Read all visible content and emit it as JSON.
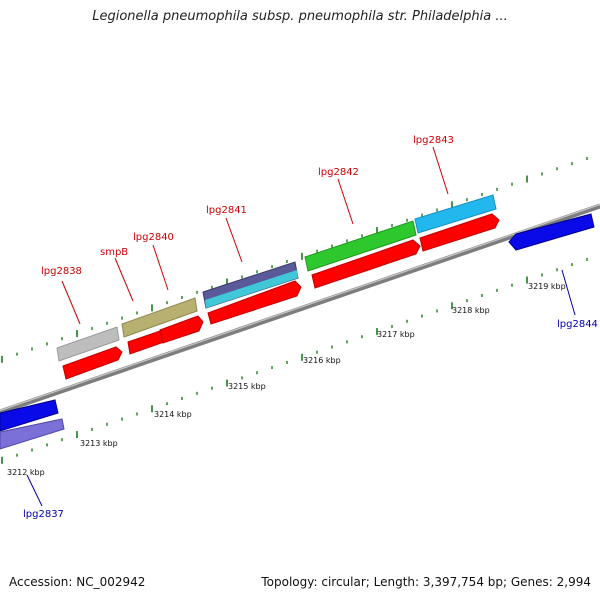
{
  "title": "Legionella pneumophila subsp. pneumophila str. Philadelphia ...",
  "footer": {
    "accession": "Accession: NC_002942",
    "summary": "Topology: circular; Length: 3,397,754 bp; Genes: 2,994"
  },
  "ruler": {
    "unit": "kbp",
    "labels": [
      "3212 kbp",
      "3213 kbp",
      "3214 kbp",
      "3215 kbp",
      "3216 kbp",
      "3217 kbp",
      "3218 kbp",
      "3219 kbp"
    ]
  },
  "genes": [
    {
      "name": "lpg2837",
      "strand": "minus",
      "color": "#000099"
    },
    {
      "name": "lpg2838",
      "strand": "plus",
      "color": "#cc0000"
    },
    {
      "name": "smpB",
      "strand": "plus",
      "color": "#cc0000"
    },
    {
      "name": "lpg2840",
      "strand": "plus",
      "color": "#cc0000"
    },
    {
      "name": "lpg2841",
      "strand": "plus",
      "color": "#cc0000"
    },
    {
      "name": "lpg2842",
      "strand": "plus",
      "color": "#cc0000"
    },
    {
      "name": "lpg2843",
      "strand": "plus",
      "color": "#cc0000"
    },
    {
      "name": "lpg2844",
      "strand": "minus",
      "color": "#000099"
    }
  ],
  "colors": {
    "axis": "#8a8a8a",
    "tick": "#1a7a1a",
    "plus_arrow": "#ff0000",
    "minus_arrow": "#0000ee"
  }
}
